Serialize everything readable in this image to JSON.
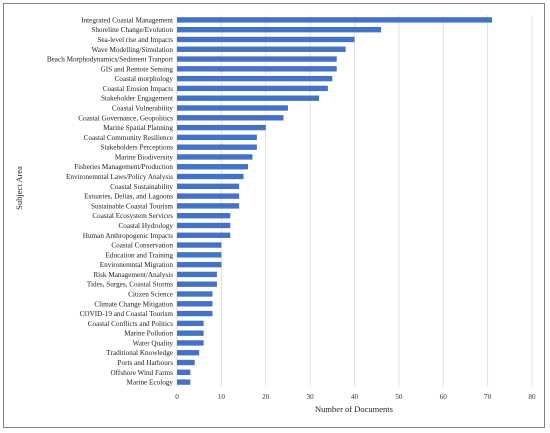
{
  "chart_data": {
    "type": "bar",
    "orientation": "horizontal",
    "title": "",
    "xlabel": "Number of Documents",
    "ylabel": "Subject Area",
    "xlim": [
      0,
      80
    ],
    "xticks": [
      0,
      10,
      20,
      30,
      40,
      50,
      60,
      70,
      80
    ],
    "grid": "vertical",
    "bar_color": "#4472c4",
    "categories": [
      "Integrated Coastal Management",
      "Shoreline Change/Evolution",
      "Sea-level rise and Impacts",
      "Wave Modelling/Simulation",
      "Beach Morphodynamics/Sediment Tranport",
      "GIS and Remote Sensing",
      "Coastal morphology",
      "Coastal Erosion Impacts",
      "Stakeholder Engagement",
      "Coastal Vulnerability",
      "Coastal Governance, Geopolitics",
      "Marine Spatial Planning",
      "Coastal Community Resilience",
      "Stakeholders Perceptions",
      "Marine Biodiversity",
      "Fisheries Management/Production",
      "Environemntal Laws/Policy Analysis",
      "Coastal Sustainability",
      "Estuaries, Deltas, and Lagoons",
      "Sustainable Coastal Tourism",
      "Coastal Ecosystem Services",
      "Coastal Hydrology",
      "Human Anthropogenic Impacts",
      "Coastal Conservation",
      "Education and Training",
      "Environemntal Migration",
      "Risk Management/Analysis",
      "Tides, Surges, Coastal Storms",
      "Citizen Science",
      "Climate Change Mitigation",
      "COVID-19 and Coastal Tourism",
      "Coastal Conflicts and Politics",
      "Marine Pollution",
      "Water Quality",
      "Traditional Knowledge",
      "Ports and Harbours",
      "Offshore Wind Farms",
      "Marine Ecology"
    ],
    "values": [
      71,
      46,
      40,
      38,
      36,
      36,
      35,
      34,
      32,
      25,
      24,
      20,
      18,
      18,
      17,
      16,
      15,
      14,
      14,
      14,
      12,
      12,
      12,
      10,
      10,
      10,
      9,
      9,
      8,
      8,
      8,
      6,
      6,
      6,
      5,
      4,
      3,
      3
    ]
  }
}
